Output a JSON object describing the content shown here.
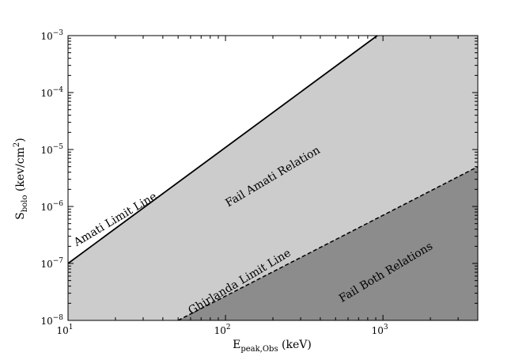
{
  "chart_data": {
    "type": "area",
    "x_scale": "log",
    "y_scale": "log",
    "xlim": [
      10,
      4000
    ],
    "ylim": [
      1e-08,
      0.001
    ],
    "xlabel": "E",
    "xlabel_sub": "peak,Obs",
    "xlabel_unit": " (keV)",
    "ylabel": "S",
    "ylabel_sub": "bolo",
    "ylabel_unit_pre": " (kev/cm",
    "ylabel_unit_sup": "2",
    "ylabel_unit_post": ")",
    "x_ticks": [
      {
        "value": 10,
        "base": "10",
        "exp": "1"
      },
      {
        "value": 100,
        "base": "10",
        "exp": "2"
      },
      {
        "value": 1000,
        "base": "10",
        "exp": "3"
      }
    ],
    "y_ticks": [
      {
        "value": 1e-08,
        "base": "10",
        "exp": "−8"
      },
      {
        "value": 1e-07,
        "base": "10",
        "exp": "−7"
      },
      {
        "value": 1e-06,
        "base": "10",
        "exp": "−6"
      },
      {
        "value": 1e-05,
        "base": "10",
        "exp": "−5"
      },
      {
        "value": 0.0001,
        "base": "10",
        "exp": "−4"
      },
      {
        "value": 0.001,
        "base": "10",
        "exp": "−3"
      }
    ],
    "series": [
      {
        "name": "Amati Limit Line",
        "style": "solid",
        "x": [
          10,
          920
        ],
        "y": [
          1e-07,
          0.001
        ]
      },
      {
        "name": "Ghirlanda Limit Line",
        "style": "dashed",
        "x": [
          50,
          4000
        ],
        "y": [
          1e-08,
          5e-06
        ]
      }
    ],
    "regions": [
      {
        "label": "Fail Amati Relation",
        "color": "#cccccc"
      },
      {
        "label": "Fail Both Relations",
        "color": "#8c8c8c"
      }
    ],
    "background_color": "#ffffff",
    "grid": false
  }
}
